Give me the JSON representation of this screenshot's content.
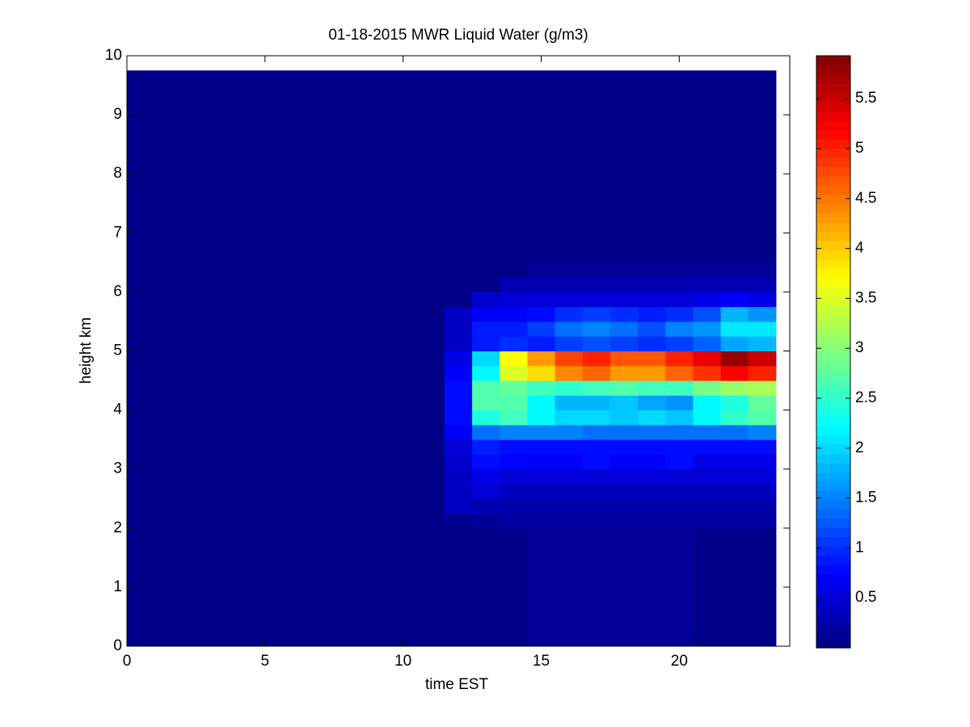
{
  "chart_data": {
    "type": "heatmap",
    "title": "01-18-2015 MWR Liquid Water (g/m3)",
    "x_label": "time EST",
    "y_label": "height km",
    "xlim": [
      0,
      24
    ],
    "xticks": [
      0,
      5,
      10,
      15,
      20
    ],
    "ylim": [
      0,
      10
    ],
    "yticks": [
      0,
      1,
      2,
      3,
      4,
      5,
      6,
      7,
      8,
      9,
      10
    ],
    "clim": [
      0,
      5.93
    ],
    "cticks": [
      0.5,
      1,
      1.5,
      2,
      2.5,
      3,
      3.5,
      4,
      4.5,
      5,
      5.5
    ],
    "colormap": "jet",
    "x": [
      0,
      1,
      2,
      3,
      4,
      5,
      6,
      7,
      8,
      9,
      10,
      11,
      12,
      13,
      14,
      15,
      16,
      17,
      18,
      19,
      20,
      21,
      22,
      23
    ],
    "y": [
      0.125,
      0.375,
      0.625,
      0.875,
      1.125,
      1.375,
      1.625,
      1.875,
      2.125,
      2.375,
      2.625,
      2.875,
      3.125,
      3.375,
      3.625,
      3.875,
      4.125,
      4.375,
      4.625,
      4.875,
      5.125,
      5.375,
      5.625,
      5.875,
      6.125,
      6.375,
      6.625,
      6.875,
      7.125,
      7.375,
      7.625,
      7.875,
      8.125,
      8.375,
      8.625,
      8.875,
      9.125,
      9.375,
      9.625
    ],
    "values": [
      [
        0.05,
        0.05,
        0.05,
        0.05,
        0.05,
        0.05,
        0.05,
        0.05,
        0.05,
        0.05,
        0.05,
        0.05,
        0.05,
        0.05,
        0.05,
        0.15,
        0.15,
        0.15,
        0.15,
        0.15,
        0.15,
        0.05,
        0.05,
        0.05
      ],
      [
        0.05,
        0.05,
        0.05,
        0.05,
        0.05,
        0.05,
        0.05,
        0.05,
        0.05,
        0.05,
        0.05,
        0.05,
        0.05,
        0.05,
        0.05,
        0.15,
        0.15,
        0.15,
        0.15,
        0.15,
        0.15,
        0.05,
        0.05,
        0.05
      ],
      [
        0.05,
        0.05,
        0.05,
        0.05,
        0.05,
        0.05,
        0.05,
        0.05,
        0.05,
        0.05,
        0.05,
        0.05,
        0.05,
        0.05,
        0.05,
        0.15,
        0.15,
        0.15,
        0.15,
        0.15,
        0.15,
        0.05,
        0.05,
        0.05
      ],
      [
        0.05,
        0.05,
        0.05,
        0.05,
        0.05,
        0.05,
        0.05,
        0.05,
        0.05,
        0.05,
        0.05,
        0.05,
        0.05,
        0.05,
        0.05,
        0.15,
        0.15,
        0.15,
        0.15,
        0.15,
        0.15,
        0.05,
        0.05,
        0.05
      ],
      [
        0.05,
        0.05,
        0.05,
        0.05,
        0.05,
        0.05,
        0.05,
        0.05,
        0.05,
        0.05,
        0.05,
        0.05,
        0.05,
        0.05,
        0.05,
        0.15,
        0.15,
        0.15,
        0.15,
        0.15,
        0.15,
        0.05,
        0.05,
        0.05
      ],
      [
        0.05,
        0.05,
        0.05,
        0.05,
        0.05,
        0.05,
        0.05,
        0.05,
        0.05,
        0.05,
        0.05,
        0.05,
        0.05,
        0.05,
        0.05,
        0.15,
        0.15,
        0.15,
        0.15,
        0.15,
        0.15,
        0.05,
        0.05,
        0.05
      ],
      [
        0.05,
        0.05,
        0.05,
        0.05,
        0.05,
        0.05,
        0.05,
        0.05,
        0.05,
        0.05,
        0.05,
        0.05,
        0.05,
        0.05,
        0.05,
        0.15,
        0.15,
        0.15,
        0.15,
        0.15,
        0.15,
        0.05,
        0.05,
        0.05
      ],
      [
        0.05,
        0.05,
        0.05,
        0.05,
        0.05,
        0.05,
        0.05,
        0.05,
        0.05,
        0.05,
        0.05,
        0.05,
        0.05,
        0.05,
        0.05,
        0.15,
        0.15,
        0.15,
        0.15,
        0.15,
        0.15,
        0.05,
        0.05,
        0.05
      ],
      [
        0.05,
        0.05,
        0.05,
        0.05,
        0.05,
        0.05,
        0.05,
        0.05,
        0.05,
        0.05,
        0.05,
        0.05,
        0.1,
        0.15,
        0.2,
        0.2,
        0.2,
        0.2,
        0.2,
        0.2,
        0.2,
        0.2,
        0.2,
        0.2
      ],
      [
        0.05,
        0.05,
        0.05,
        0.05,
        0.05,
        0.05,
        0.05,
        0.05,
        0.05,
        0.05,
        0.05,
        0.05,
        0.4,
        0.3,
        0.25,
        0.25,
        0.25,
        0.25,
        0.25,
        0.25,
        0.25,
        0.25,
        0.25,
        0.25
      ],
      [
        0.05,
        0.05,
        0.05,
        0.05,
        0.05,
        0.05,
        0.05,
        0.05,
        0.05,
        0.05,
        0.05,
        0.05,
        0.4,
        0.5,
        0.35,
        0.35,
        0.35,
        0.35,
        0.35,
        0.35,
        0.35,
        0.35,
        0.35,
        0.35
      ],
      [
        0.05,
        0.05,
        0.05,
        0.05,
        0.05,
        0.05,
        0.05,
        0.05,
        0.05,
        0.05,
        0.05,
        0.05,
        0.4,
        0.6,
        0.5,
        0.5,
        0.5,
        0.5,
        0.5,
        0.5,
        0.5,
        0.5,
        0.5,
        0.5
      ],
      [
        0.05,
        0.05,
        0.05,
        0.05,
        0.05,
        0.05,
        0.05,
        0.05,
        0.05,
        0.05,
        0.05,
        0.05,
        0.45,
        0.8,
        0.75,
        0.7,
        0.7,
        0.8,
        0.7,
        0.7,
        0.8,
        0.6,
        0.6,
        0.6
      ],
      [
        0.05,
        0.05,
        0.05,
        0.05,
        0.05,
        0.05,
        0.05,
        0.05,
        0.05,
        0.05,
        0.05,
        0.05,
        0.5,
        0.9,
        0.8,
        0.8,
        0.8,
        0.8,
        0.8,
        0.8,
        0.8,
        0.8,
        0.8,
        0.8
      ],
      [
        0.05,
        0.05,
        0.05,
        0.05,
        0.05,
        0.05,
        0.05,
        0.05,
        0.05,
        0.05,
        0.05,
        0.05,
        0.7,
        1.4,
        1.5,
        1.5,
        1.5,
        1.4,
        1.4,
        1.4,
        1.4,
        1.4,
        1.4,
        1.5
      ],
      [
        0.05,
        0.05,
        0.05,
        0.05,
        0.05,
        0.05,
        0.05,
        0.05,
        0.05,
        0.05,
        0.05,
        0.05,
        0.8,
        2.4,
        2.6,
        2.2,
        2.0,
        2.0,
        1.9,
        2.0,
        1.9,
        2.2,
        2.5,
        2.7
      ],
      [
        0.05,
        0.05,
        0.05,
        0.05,
        0.05,
        0.05,
        0.05,
        0.05,
        0.05,
        0.05,
        0.05,
        0.05,
        0.8,
        2.7,
        2.7,
        2.2,
        1.8,
        1.8,
        1.9,
        1.7,
        1.6,
        2.2,
        2.4,
        2.8
      ],
      [
        0.05,
        0.05,
        0.05,
        0.05,
        0.05,
        0.05,
        0.05,
        0.05,
        0.05,
        0.05,
        0.05,
        0.05,
        0.8,
        2.7,
        2.8,
        2.6,
        2.5,
        2.6,
        2.7,
        2.6,
        2.6,
        2.9,
        3.1,
        3.2
      ],
      [
        0.05,
        0.05,
        0.05,
        0.05,
        0.05,
        0.05,
        0.05,
        0.05,
        0.05,
        0.05,
        0.05,
        0.05,
        0.7,
        2.2,
        3.5,
        3.9,
        4.4,
        4.6,
        4.3,
        4.3,
        4.6,
        4.9,
        5.2,
        5.0
      ],
      [
        0.05,
        0.05,
        0.05,
        0.05,
        0.05,
        0.05,
        0.05,
        0.05,
        0.05,
        0.05,
        0.05,
        0.05,
        0.6,
        2.0,
        3.7,
        4.3,
        4.8,
        5.0,
        4.7,
        4.7,
        5.0,
        5.3,
        5.8,
        5.5
      ],
      [
        0.05,
        0.05,
        0.05,
        0.05,
        0.05,
        0.05,
        0.05,
        0.05,
        0.05,
        0.05,
        0.05,
        0.05,
        0.4,
        0.9,
        1.0,
        0.9,
        1.1,
        1.2,
        1.1,
        1.0,
        1.1,
        1.3,
        1.7,
        1.8
      ],
      [
        0.05,
        0.05,
        0.05,
        0.05,
        0.05,
        0.05,
        0.05,
        0.05,
        0.05,
        0.05,
        0.05,
        0.05,
        0.4,
        0.9,
        0.9,
        1.1,
        1.4,
        1.5,
        1.4,
        1.2,
        1.5,
        1.6,
        2.1,
        2.1
      ],
      [
        0.05,
        0.05,
        0.05,
        0.05,
        0.05,
        0.05,
        0.05,
        0.05,
        0.05,
        0.05,
        0.05,
        0.05,
        0.4,
        0.7,
        0.7,
        0.8,
        1.0,
        1.1,
        1.0,
        0.9,
        1.0,
        1.2,
        1.8,
        1.6
      ],
      [
        0.05,
        0.05,
        0.05,
        0.05,
        0.05,
        0.05,
        0.05,
        0.05,
        0.05,
        0.05,
        0.05,
        0.05,
        0.05,
        0.45,
        0.5,
        0.5,
        0.5,
        0.5,
        0.5,
        0.5,
        0.5,
        0.6,
        0.7,
        0.6
      ],
      [
        0.05,
        0.05,
        0.05,
        0.05,
        0.05,
        0.05,
        0.05,
        0.05,
        0.05,
        0.05,
        0.05,
        0.05,
        0.05,
        0.05,
        0.3,
        0.3,
        0.3,
        0.3,
        0.3,
        0.3,
        0.3,
        0.3,
        0.3,
        0.3
      ],
      [
        0.05,
        0.05,
        0.05,
        0.05,
        0.05,
        0.05,
        0.05,
        0.05,
        0.05,
        0.05,
        0.05,
        0.05,
        0.05,
        0.05,
        0.05,
        0.15,
        0.15,
        0.15,
        0.15,
        0.15,
        0.15,
        0.15,
        0.15,
        0.15
      ],
      [
        0.05,
        0.05,
        0.05,
        0.05,
        0.05,
        0.05,
        0.05,
        0.05,
        0.05,
        0.05,
        0.05,
        0.05,
        0.05,
        0.05,
        0.05,
        0.05,
        0.05,
        0.05,
        0.05,
        0.05,
        0.05,
        0.05,
        0.05,
        0.05
      ],
      [
        0.05,
        0.05,
        0.05,
        0.05,
        0.05,
        0.05,
        0.05,
        0.05,
        0.05,
        0.05,
        0.05,
        0.05,
        0.05,
        0.05,
        0.05,
        0.05,
        0.05,
        0.05,
        0.05,
        0.05,
        0.05,
        0.05,
        0.05,
        0.05
      ],
      [
        0.05,
        0.05,
        0.05,
        0.05,
        0.05,
        0.05,
        0.05,
        0.05,
        0.05,
        0.05,
        0.05,
        0.05,
        0.05,
        0.05,
        0.05,
        0.05,
        0.05,
        0.05,
        0.05,
        0.05,
        0.05,
        0.05,
        0.05,
        0.05
      ],
      [
        0.05,
        0.05,
        0.05,
        0.05,
        0.05,
        0.05,
        0.05,
        0.05,
        0.05,
        0.05,
        0.05,
        0.05,
        0.05,
        0.05,
        0.05,
        0.05,
        0.05,
        0.05,
        0.05,
        0.05,
        0.05,
        0.05,
        0.05,
        0.05
      ],
      [
        0.05,
        0.05,
        0.05,
        0.05,
        0.05,
        0.05,
        0.05,
        0.05,
        0.05,
        0.05,
        0.05,
        0.05,
        0.05,
        0.05,
        0.05,
        0.05,
        0.05,
        0.05,
        0.05,
        0.05,
        0.05,
        0.05,
        0.05,
        0.05
      ],
      [
        0.05,
        0.05,
        0.05,
        0.05,
        0.05,
        0.05,
        0.05,
        0.05,
        0.05,
        0.05,
        0.05,
        0.05,
        0.05,
        0.05,
        0.05,
        0.05,
        0.05,
        0.05,
        0.05,
        0.05,
        0.05,
        0.05,
        0.05,
        0.05
      ],
      [
        0.05,
        0.05,
        0.05,
        0.05,
        0.05,
        0.05,
        0.05,
        0.05,
        0.05,
        0.05,
        0.05,
        0.05,
        0.05,
        0.05,
        0.05,
        0.05,
        0.05,
        0.05,
        0.05,
        0.05,
        0.05,
        0.05,
        0.05,
        0.05
      ],
      [
        0.05,
        0.05,
        0.05,
        0.05,
        0.05,
        0.05,
        0.05,
        0.05,
        0.05,
        0.05,
        0.05,
        0.05,
        0.05,
        0.05,
        0.05,
        0.05,
        0.05,
        0.05,
        0.05,
        0.05,
        0.05,
        0.05,
        0.05,
        0.05
      ],
      [
        0.05,
        0.05,
        0.05,
        0.05,
        0.05,
        0.05,
        0.05,
        0.05,
        0.05,
        0.05,
        0.05,
        0.05,
        0.05,
        0.05,
        0.05,
        0.05,
        0.05,
        0.05,
        0.05,
        0.05,
        0.05,
        0.05,
        0.05,
        0.05
      ],
      [
        0.05,
        0.05,
        0.05,
        0.05,
        0.05,
        0.05,
        0.05,
        0.05,
        0.05,
        0.05,
        0.05,
        0.05,
        0.05,
        0.05,
        0.05,
        0.05,
        0.05,
        0.05,
        0.05,
        0.05,
        0.05,
        0.05,
        0.05,
        0.05
      ],
      [
        0.05,
        0.05,
        0.05,
        0.05,
        0.05,
        0.05,
        0.05,
        0.05,
        0.05,
        0.05,
        0.05,
        0.05,
        0.05,
        0.05,
        0.05,
        0.05,
        0.05,
        0.05,
        0.05,
        0.05,
        0.05,
        0.05,
        0.05,
        0.05
      ],
      [
        0.05,
        0.05,
        0.05,
        0.05,
        0.05,
        0.05,
        0.05,
        0.05,
        0.05,
        0.05,
        0.05,
        0.05,
        0.05,
        0.05,
        0.05,
        0.05,
        0.05,
        0.05,
        0.05,
        0.05,
        0.05,
        0.05,
        0.05,
        0.05
      ],
      [
        0.05,
        0.05,
        0.05,
        0.05,
        0.05,
        0.05,
        0.05,
        0.05,
        0.05,
        0.05,
        0.05,
        0.05,
        0.05,
        0.05,
        0.05,
        0.05,
        0.05,
        0.05,
        0.05,
        0.05,
        0.05,
        0.05,
        0.05,
        0.05
      ]
    ]
  }
}
